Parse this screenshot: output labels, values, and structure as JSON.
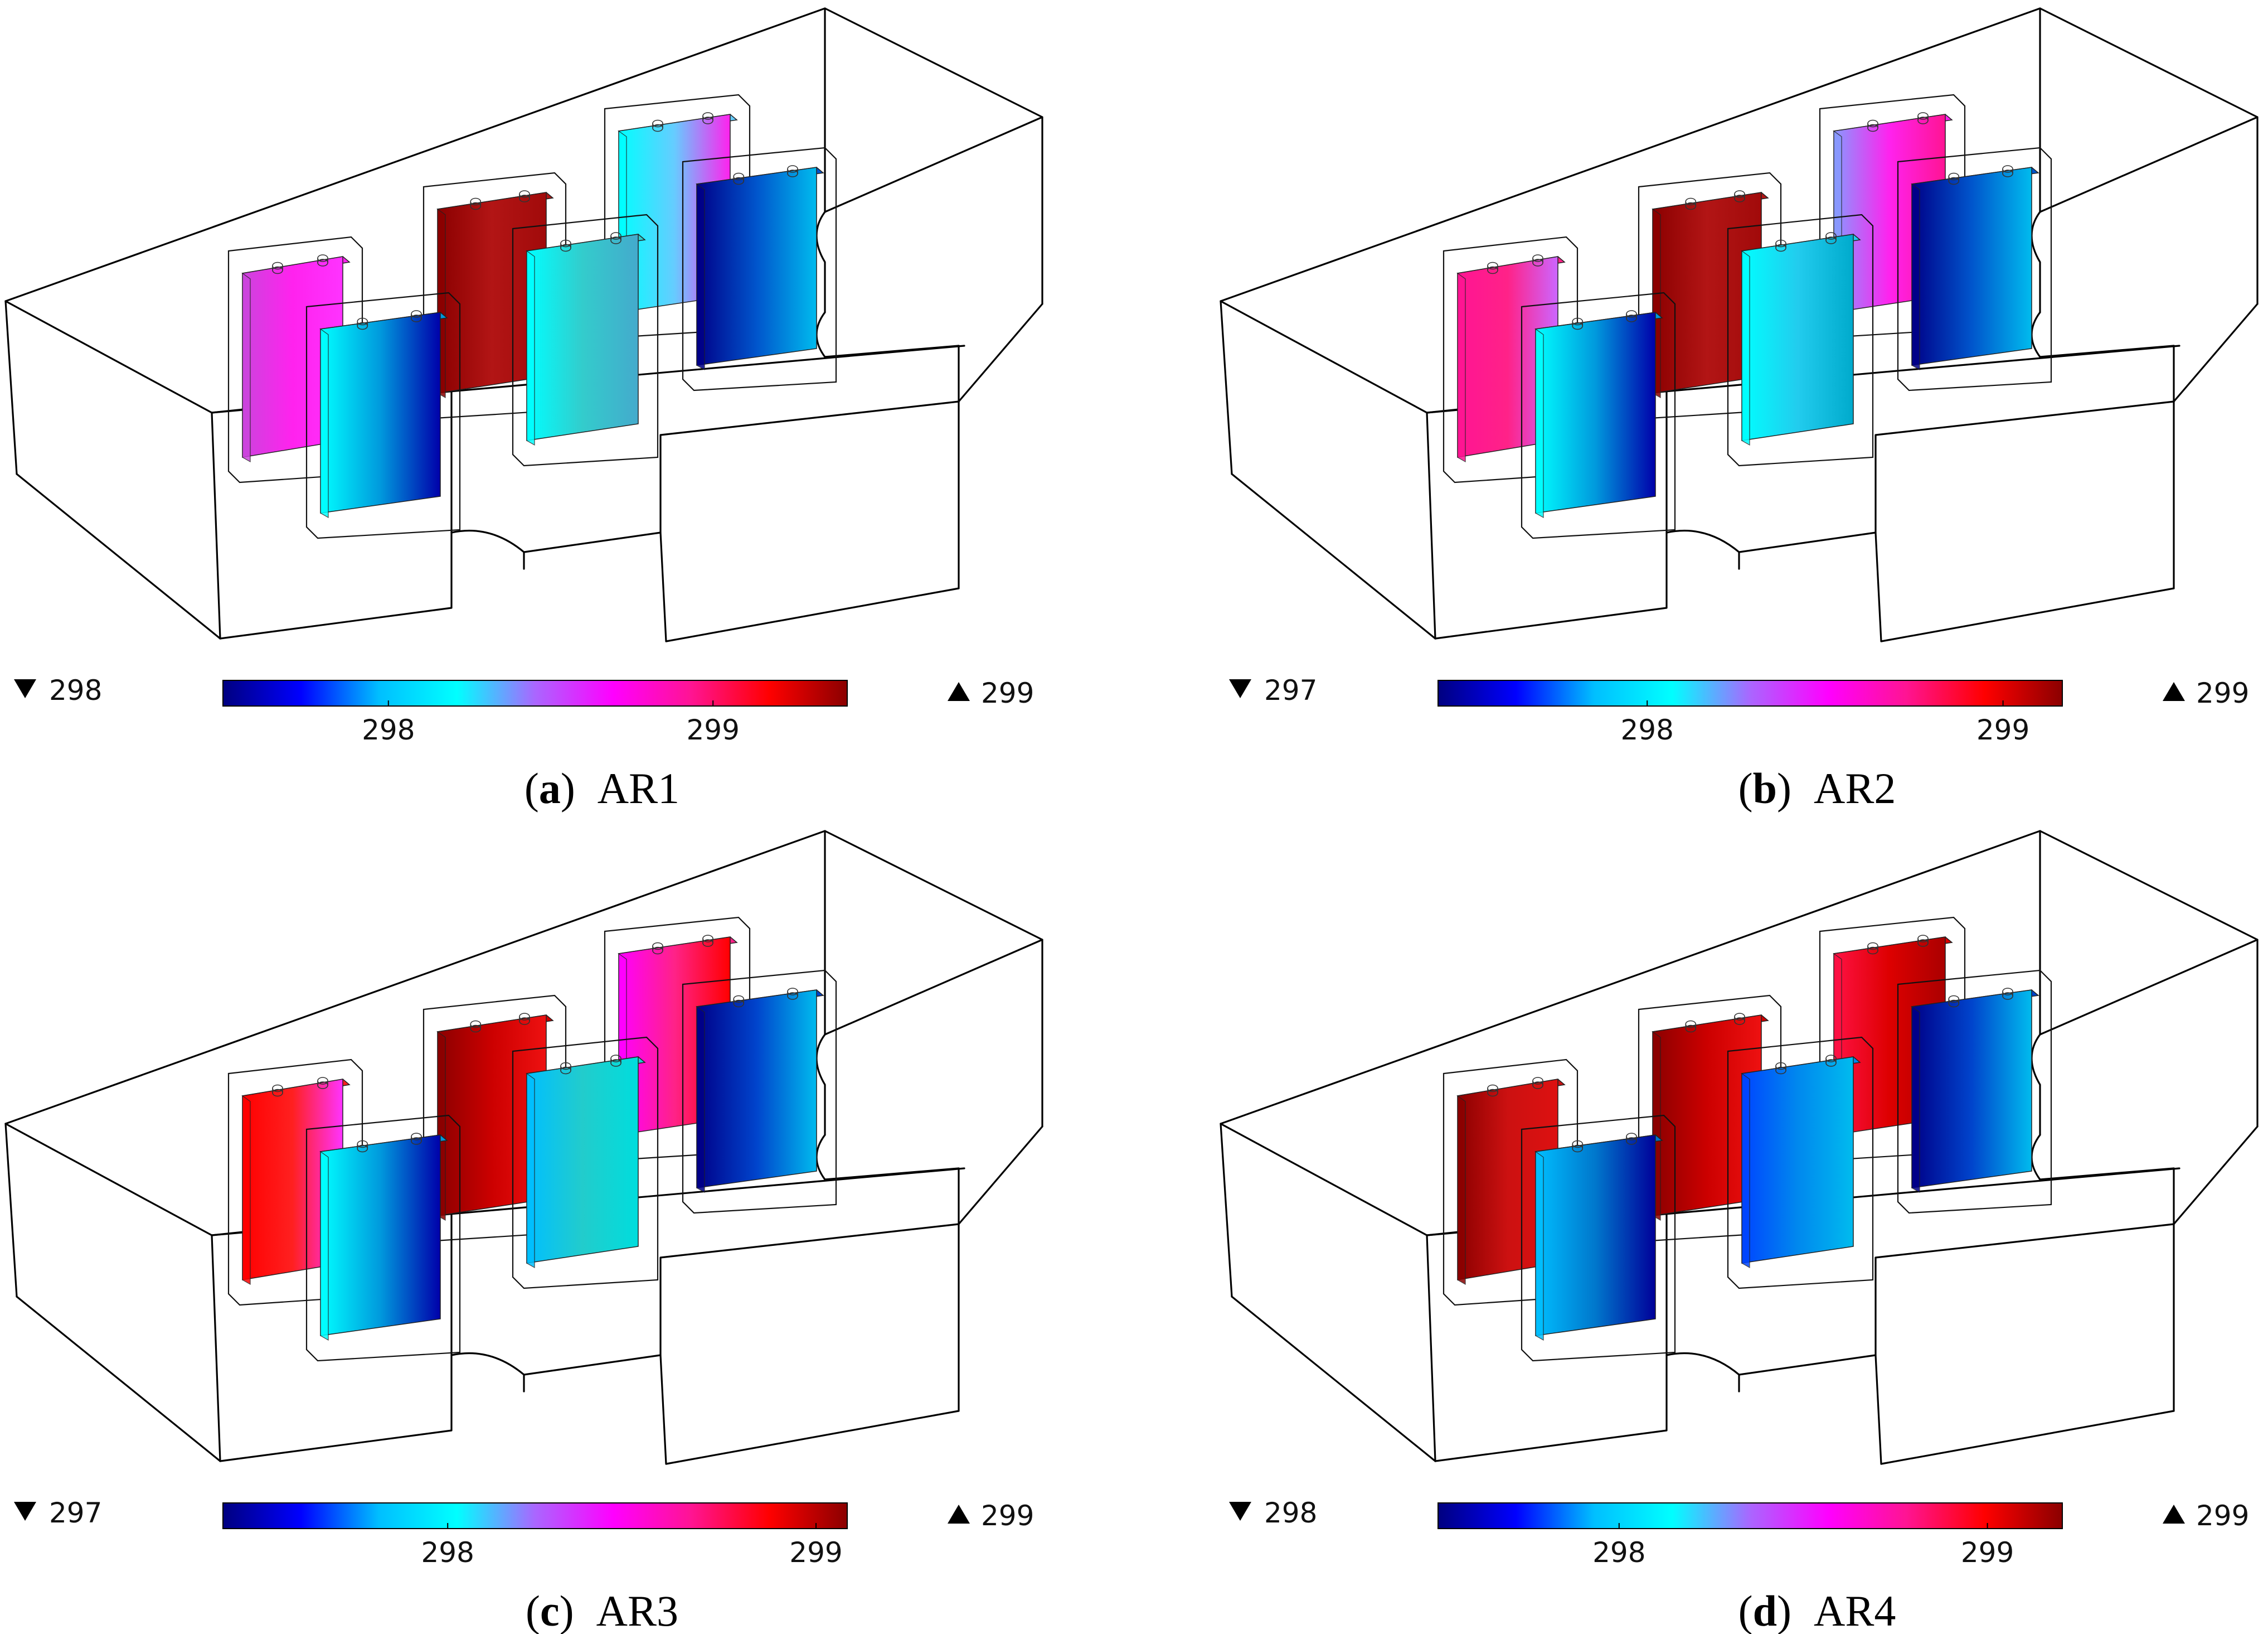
{
  "colormap": {
    "stops": [
      "#000080",
      "#0000ff",
      "#00bfff",
      "#00ffff",
      "#aa66ff",
      "#ff00ff",
      "#ff1493",
      "#ff0000",
      "#8b0000"
    ]
  },
  "panels": [
    {
      "id": "a",
      "caption_letter": "a",
      "caption_label": "AR1",
      "range_min": "298",
      "range_max": "299",
      "ticks": [
        {
          "label": "298",
          "pos": 0.265
        },
        {
          "label": "299",
          "pos": 0.785
        }
      ],
      "cells": [
        {
          "name": "back-left",
          "colors": [
            "#cc44dd",
            "#ff22ee",
            "#ff33ff"
          ]
        },
        {
          "name": "back-middle",
          "colors": [
            "#8b0000",
            "#b21515",
            "#a10a0a"
          ]
        },
        {
          "name": "back-right",
          "colors": [
            "#00ffff",
            "#66ccff",
            "#ff22ee"
          ]
        },
        {
          "name": "front-left",
          "colors": [
            "#00ffff",
            "#0099dd",
            "#0000aa"
          ]
        },
        {
          "name": "front-middle",
          "colors": [
            "#00ffff",
            "#33cccc",
            "#44aacc"
          ]
        },
        {
          "name": "front-right",
          "colors": [
            "#000088",
            "#0055cc",
            "#00bbee"
          ]
        }
      ]
    },
    {
      "id": "b",
      "caption_letter": "b",
      "caption_label": "AR2",
      "range_min": "297",
      "range_max": "299",
      "ticks": [
        {
          "label": "298",
          "pos": 0.335
        },
        {
          "label": "299",
          "pos": 0.905
        }
      ],
      "cells": [
        {
          "name": "back-left",
          "colors": [
            "#ff1493",
            "#ff2288",
            "#cc66ff"
          ]
        },
        {
          "name": "back-middle",
          "colors": [
            "#8b0000",
            "#b21515",
            "#a10a0a"
          ]
        },
        {
          "name": "back-right",
          "colors": [
            "#8899ff",
            "#ff22ee",
            "#ff1493"
          ]
        },
        {
          "name": "front-left",
          "colors": [
            "#00ffff",
            "#0099dd",
            "#0000aa"
          ]
        },
        {
          "name": "front-middle",
          "colors": [
            "#00ffff",
            "#22ccee",
            "#00aacc"
          ]
        },
        {
          "name": "front-right",
          "colors": [
            "#000088",
            "#0055cc",
            "#00bbee"
          ]
        }
      ]
    },
    {
      "id": "c",
      "caption_letter": "c",
      "caption_label": "AR3",
      "range_min": "297",
      "range_max": "299",
      "ticks": [
        {
          "label": "298",
          "pos": 0.36
        },
        {
          "label": "299",
          "pos": 0.95
        }
      ],
      "cells": [
        {
          "name": "back-left",
          "colors": [
            "#ff0000",
            "#ff2020",
            "#ff33ff"
          ]
        },
        {
          "name": "back-middle",
          "colors": [
            "#8b0000",
            "#cc0000",
            "#ee1111"
          ]
        },
        {
          "name": "back-right",
          "colors": [
            "#ff00ff",
            "#ff2288",
            "#ff0000"
          ]
        },
        {
          "name": "front-left",
          "colors": [
            "#00ffff",
            "#0099dd",
            "#0000aa"
          ]
        },
        {
          "name": "front-middle",
          "colors": [
            "#00bfff",
            "#22cccc",
            "#00dddd"
          ]
        },
        {
          "name": "front-right",
          "colors": [
            "#000088",
            "#0044cc",
            "#00bbee"
          ]
        }
      ]
    },
    {
      "id": "d",
      "caption_letter": "d",
      "caption_label": "AR4",
      "range_min": "298",
      "range_max": "299",
      "ticks": [
        {
          "label": "298",
          "pos": 0.29
        },
        {
          "label": "299",
          "pos": 0.88
        }
      ],
      "cells": [
        {
          "name": "back-left",
          "colors": [
            "#8b0000",
            "#cc1111",
            "#dd1111"
          ]
        },
        {
          "name": "back-middle",
          "colors": [
            "#8b0000",
            "#cc0000",
            "#ee1111"
          ]
        },
        {
          "name": "back-right",
          "colors": [
            "#ff1144",
            "#dd0000",
            "#aa0000"
          ]
        },
        {
          "name": "front-left",
          "colors": [
            "#00bfff",
            "#0077cc",
            "#000099"
          ]
        },
        {
          "name": "front-middle",
          "colors": [
            "#0044ff",
            "#0088ee",
            "#00bbee"
          ]
        },
        {
          "name": "front-right",
          "colors": [
            "#000088",
            "#0044cc",
            "#00bbee"
          ]
        }
      ]
    }
  ]
}
